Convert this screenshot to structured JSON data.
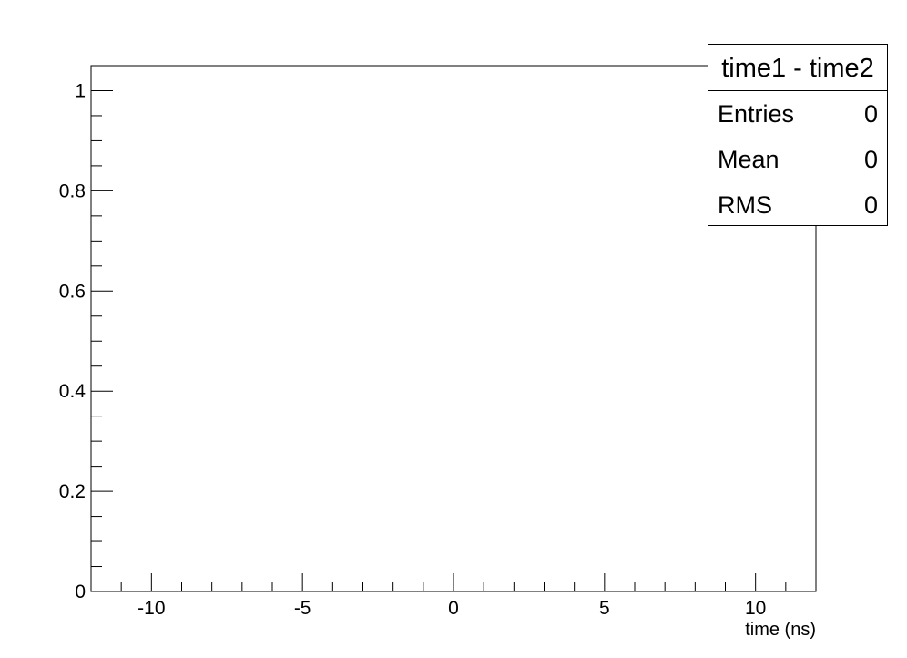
{
  "chart_data": {
    "type": "bar",
    "title": "",
    "xlabel": "time (ns)",
    "ylabel": "",
    "xlim": [
      -12,
      12
    ],
    "ylim": [
      0,
      1.05
    ],
    "x_ticks": [
      -10,
      -5,
      0,
      5,
      10
    ],
    "x_tick_labels": [
      "-10",
      "-5",
      "0",
      "5",
      "10"
    ],
    "y_ticks": [
      0,
      0.2,
      0.4,
      0.6,
      0.8,
      1
    ],
    "y_tick_labels": [
      "0",
      "0.2",
      "0.4",
      "0.6",
      "0.8",
      "1"
    ],
    "grid": false,
    "values": []
  },
  "stats": {
    "title": "time1 - time2",
    "rows": [
      {
        "label": "Entries",
        "value": "0"
      },
      {
        "label": "Mean",
        "value": "0"
      },
      {
        "label": "RMS",
        "value": "0"
      }
    ]
  }
}
